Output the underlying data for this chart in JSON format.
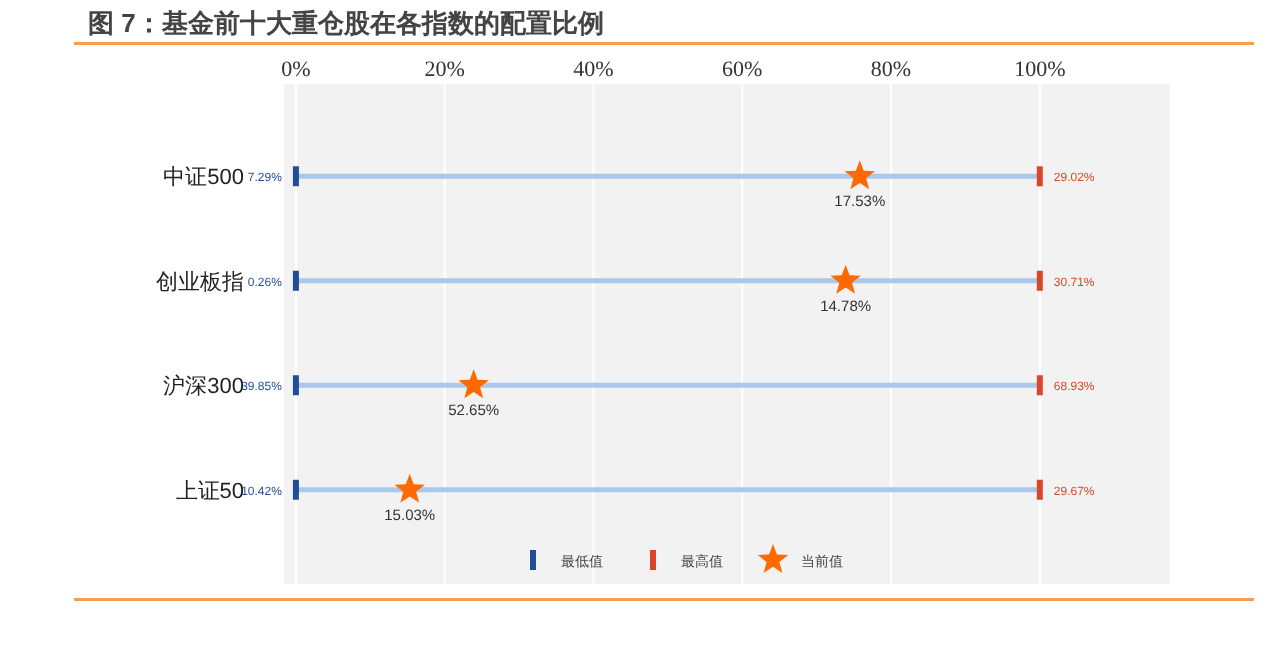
{
  "chart_data": {
    "type": "scatter",
    "orientation": "horizontal",
    "title": "图 7：基金前十大重仓股在各指数的配置比例",
    "categories": [
      "中证500",
      "创业板指",
      "沪深300",
      "上证50"
    ],
    "xlim": [
      -1.6,
      117.5
    ],
    "xticks": [
      {
        "value": 0,
        "label": "0%"
      },
      {
        "value": 20,
        "label": "20%"
      },
      {
        "value": 40,
        "label": "40%"
      },
      {
        "value": 60,
        "label": "60%"
      },
      {
        "value": 80,
        "label": "80%"
      },
      {
        "value": 100,
        "label": "100%"
      }
    ],
    "grid": "x",
    "legend": "bottom",
    "series": [
      {
        "type": "bar",
        "color": "#a9c8ea",
        "base": [
          0,
          0,
          0,
          0
        ],
        "values": [
          100,
          100,
          100,
          100
        ]
      },
      {
        "name": "最低值",
        "color": "#1f4e96",
        "values": [
          0,
          0,
          0,
          0
        ]
      },
      {
        "name": "最高值",
        "color": "#d9462b",
        "values": [
          100,
          100,
          100,
          100
        ]
      },
      {
        "name": "当前值",
        "color": "#ff6a00",
        "marker": "star",
        "values": [
          75.8,
          73.9,
          23.9,
          15.3
        ]
      }
    ],
    "annotations": [
      {
        "text": "7.29%",
        "x": 0,
        "y": "中证500"
      },
      {
        "text": "0.26%",
        "x": 0,
        "y": "创业板指"
      },
      {
        "text": "39.85%",
        "x": 0,
        "y": "沪深300"
      },
      {
        "text": "10.42%",
        "x": 0,
        "y": "上证50"
      },
      {
        "text": "29.02%",
        "x": 100,
        "y": "中证500"
      },
      {
        "text": "30.71%",
        "x": 100,
        "y": "创业板指"
      },
      {
        "text": "68.93%",
        "x": 100,
        "y": "沪深300"
      },
      {
        "text": "29.67%",
        "x": 100,
        "y": "上证50"
      },
      {
        "text": "17.53%",
        "x": 75.8,
        "y": "中证500"
      },
      {
        "text": "14.78%",
        "x": 73.9,
        "y": "创业板指"
      },
      {
        "text": "52.65%",
        "x": 23.9,
        "y": "沪深300"
      },
      {
        "text": "15.03%",
        "x": 15.3,
        "y": "上证50"
      }
    ]
  }
}
